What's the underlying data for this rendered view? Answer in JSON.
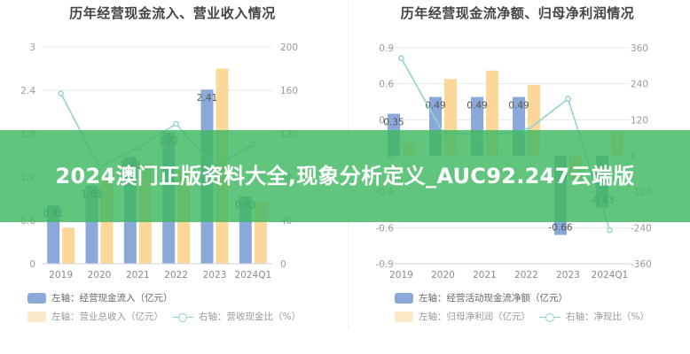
{
  "banner": {
    "text": "2024澳门正版资料大全,现象分析定义_AUC92.247云端版"
  },
  "colors": {
    "blue": "#8aa9d8",
    "orange": "#fcd79a",
    "line": "#8fd3cf",
    "banner": "#40b860"
  },
  "left_panel": {
    "title": "历年经营现金流入、营业收入情况",
    "legend": {
      "blue": "左轴：经营现金流入（亿元）",
      "orange": "左轴：营业总收入（亿元）",
      "line": "右轴：营收现金比（%）"
    }
  },
  "right_panel": {
    "title": "历年经营现金流净额、归母净利润情况",
    "legend": {
      "blue": "左轴：经营活动现金流净额（亿元）",
      "orange": "左轴：归母净利润（亿元）",
      "line": "右轴：净现比（%）"
    }
  },
  "chart_data": [
    {
      "type": "bar",
      "title": "历年经营现金流入、营业收入情况",
      "categories": [
        "2019",
        "2020",
        "2021",
        "2022",
        "2023",
        "2024Q1"
      ],
      "left_axis": {
        "ticks": [
          "3",
          "2.4",
          "1.8",
          "1.2",
          "0.6",
          "0"
        ],
        "range": [
          0,
          3
        ]
      },
      "right_axis": {
        "ticks": [
          "200",
          "160",
          "120",
          "80",
          "40",
          "0"
        ],
        "range": [
          0,
          200
        ]
      },
      "series": [
        {
          "name": "左轴：经营现金流入（亿元）",
          "type": "bar",
          "axis": "left",
          "values": [
            0.81,
            1.08,
            1.48,
            1.82,
            2.41,
            0.93
          ],
          "labels": [
            "0.81",
            "1.08",
            "1.48",
            "1.82",
            "2.41",
            "0.93"
          ]
        },
        {
          "name": "左轴：营业总收入（亿元）",
          "type": "bar",
          "axis": "left",
          "values": [
            0.5,
            1.2,
            1.38,
            1.3,
            2.7,
            0.85
          ]
        },
        {
          "name": "右轴：营收现金比（%）",
          "type": "line",
          "axis": "right",
          "values": [
            157,
            89,
            107,
            129,
            89,
            110
          ]
        }
      ],
      "grid": true,
      "legend_position": "bottom"
    },
    {
      "type": "bar",
      "title": "历年经营现金流净额、归母净利润情况",
      "categories": [
        "2019",
        "2020",
        "2021",
        "2022",
        "2023",
        "2024Q1"
      ],
      "left_axis": {
        "ticks": [
          "0.9",
          "0.6",
          "0.3",
          "0",
          "-0.3",
          "-0.6",
          "-0.9"
        ],
        "range": [
          -0.9,
          0.9
        ]
      },
      "right_axis": {
        "ticks": [
          "360",
          "240",
          "120",
          "0",
          "-120",
          "-240",
          "-360"
        ],
        "range": [
          -360,
          360
        ]
      },
      "series": [
        {
          "name": "左轴：经营活动现金流净额（亿元）",
          "type": "bar",
          "axis": "left",
          "values": [
            0.35,
            0.49,
            0.49,
            0.49,
            -0.66,
            -0.43
          ],
          "labels": [
            "0.35",
            "0.49",
            "0.49",
            "0.49",
            "-0.66",
            "-0.43"
          ]
        },
        {
          "name": "左轴：归母净利润（亿元）",
          "type": "bar",
          "axis": "left",
          "values": [
            0.1,
            0.64,
            0.71,
            0.59,
            -0.2,
            0.2
          ]
        },
        {
          "name": "右轴：净现比（%）",
          "type": "line",
          "axis": "right",
          "values": [
            325,
            77,
            69,
            83,
            190,
            -248
          ]
        }
      ],
      "grid": true,
      "legend_position": "bottom"
    }
  ]
}
